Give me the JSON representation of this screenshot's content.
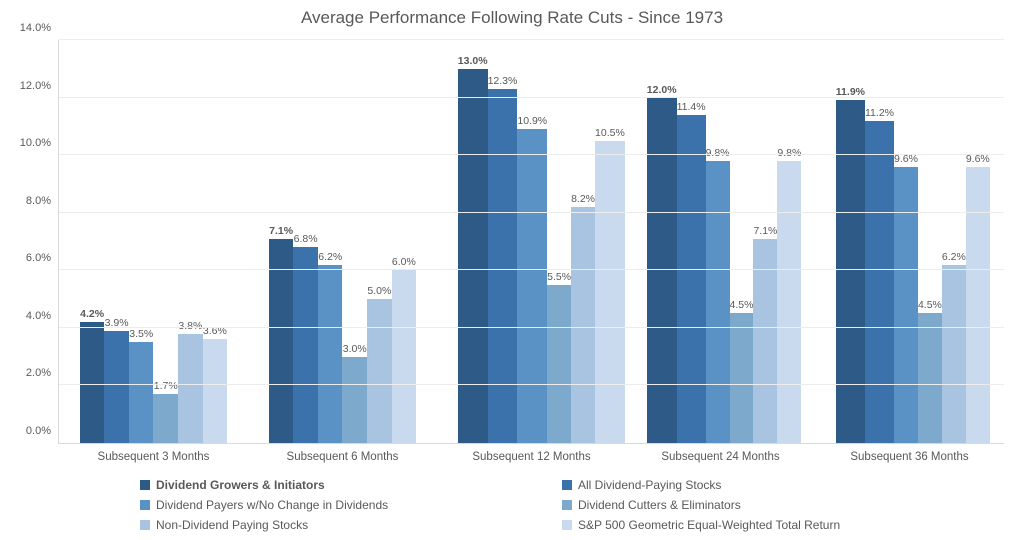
{
  "chart": {
    "type": "bar",
    "title": "Average Performance Following Rate Cuts - Since 1973",
    "title_fontsize": 17,
    "title_color": "#595959",
    "background_color": "#ffffff",
    "grid_color": "#ececec",
    "axis_color": "#d9d9d9",
    "tick_label_color": "#595959",
    "tick_label_fontsize": 11,
    "data_label_fontsize": 10.5,
    "y": {
      "min": 0.0,
      "max": 14.0,
      "tick_step": 2.0,
      "ticks": [
        0.0,
        2.0,
        4.0,
        6.0,
        8.0,
        10.0,
        12.0,
        14.0
      ],
      "tick_labels": [
        "0.0%",
        "2.0%",
        "4.0%",
        "6.0%",
        "8.0%",
        "10.0%",
        "12.0%",
        "14.0%"
      ],
      "format": "0.0%"
    },
    "categories": [
      "Subsequent 3 Months",
      "Subsequent 6 Months",
      "Subsequent 12 Months",
      "Subsequent 24 Months",
      "Subsequent 36 Months"
    ],
    "series": [
      {
        "name": "Dividend Growers & Initiators",
        "color": "#2e5a87",
        "bold": true,
        "values": [
          4.2,
          7.1,
          13.0,
          12.0,
          11.9
        ],
        "labels": [
          "4.2%",
          "7.1%",
          "13.0%",
          "12.0%",
          "11.9%"
        ]
      },
      {
        "name": "All Dividend-Paying Stocks",
        "color": "#3b72ab",
        "bold": false,
        "values": [
          3.9,
          6.8,
          12.3,
          11.4,
          11.2
        ],
        "labels": [
          "3.9%",
          "6.8%",
          "12.3%",
          "11.4%",
          "11.2%"
        ]
      },
      {
        "name": "Dividend Payers w/No Change in Dividends",
        "color": "#5a92c6",
        "bold": false,
        "values": [
          3.5,
          6.2,
          10.9,
          9.8,
          9.6
        ],
        "labels": [
          "3.5%",
          "6.2%",
          "10.9%",
          "9.8%",
          "9.6%"
        ]
      },
      {
        "name": "Dividend Cutters & Eliminators",
        "color": "#7da9cd",
        "bold": false,
        "values": [
          1.7,
          3.0,
          5.5,
          4.5,
          4.5
        ],
        "labels": [
          "1.7%",
          "3.0%",
          "5.5%",
          "4.5%",
          "4.5%"
        ]
      },
      {
        "name": "Non-Dividend Paying Stocks",
        "color": "#a8c4e0",
        "bold": false,
        "values": [
          3.8,
          5.0,
          8.2,
          7.1,
          6.2
        ],
        "labels": [
          "3.8%",
          "5.0%",
          "8.2%",
          "7.1%",
          "6.2%"
        ]
      },
      {
        "name": "S&P 500 Geometric Equal-Weighted Total Return",
        "color": "#c9daee",
        "bold": false,
        "values": [
          3.6,
          6.0,
          10.5,
          9.8,
          9.6
        ],
        "labels": [
          "3.6%",
          "6.0%",
          "10.5%",
          "9.8%",
          "9.6%"
        ]
      }
    ],
    "bar_group_width_pct": 78,
    "legend": {
      "columns": 2,
      "fontsize": 12
    }
  }
}
